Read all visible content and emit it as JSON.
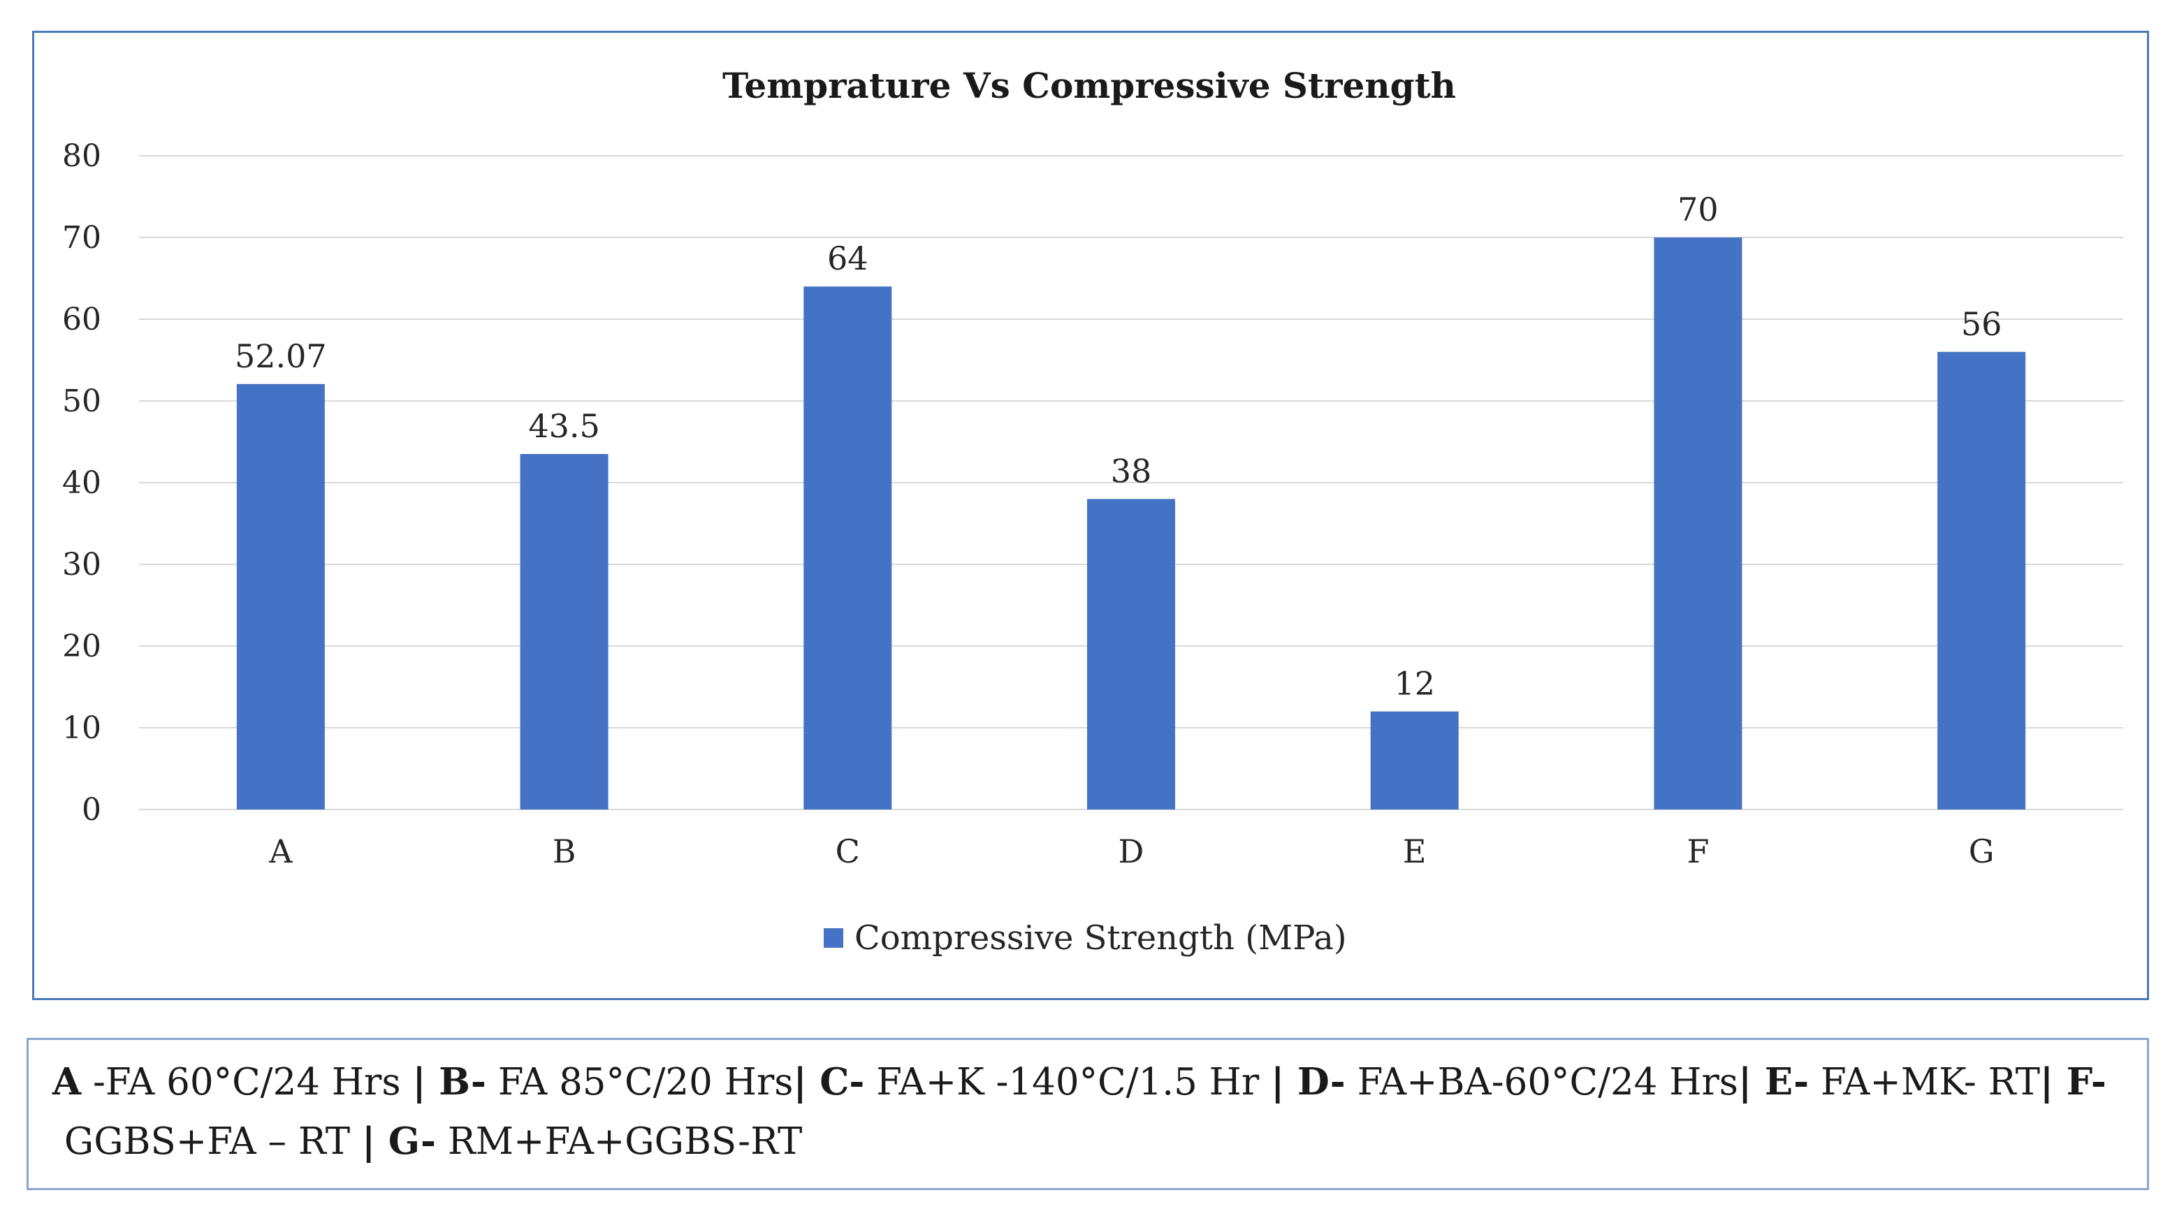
{
  "chart_data": {
    "type": "bar",
    "title": "Temprature Vs Compressive Strength",
    "categories": [
      "A",
      "B",
      "C",
      "D",
      "E",
      "F",
      "G"
    ],
    "series": [
      {
        "name": "Compressive Strength (MPa)",
        "values": [
          52.07,
          43.5,
          64,
          38,
          12,
          70,
          56
        ],
        "data_labels": [
          "52.07",
          "43.5",
          "64",
          "38",
          "12",
          "70",
          "56"
        ],
        "color": "#4472c4"
      }
    ],
    "y_ticks": [
      "0",
      "10",
      "20",
      "30",
      "40",
      "50",
      "60",
      "70",
      "80"
    ],
    "ylim": [
      0,
      80
    ],
    "xlabel": "",
    "ylabel": "",
    "grid": true,
    "legend_position": "bottom"
  },
  "caption": {
    "items": [
      {
        "key": "A",
        "sep": " -",
        "text": "FA 60°C/24 Hrs ",
        "bar": "| "
      },
      {
        "key": "B-",
        "sep": " ",
        "text": "FA 85°C/20 Hrs",
        "bar": "| "
      },
      {
        "key": "C-",
        "sep": " ",
        "text": "FA+K -140°C/1.5 Hr ",
        "bar": "| "
      },
      {
        "key": "D-",
        "sep": " ",
        "text": "FA+BA-60°C/24 Hrs",
        "bar": "| "
      },
      {
        "key": "E-",
        "sep": " ",
        "text": "FA+MK- RT",
        "bar": "| "
      },
      {
        "key": "F-",
        "sep": " ",
        "text": "GGBS+FA – RT ",
        "bar": "| "
      },
      {
        "key": "G-",
        "sep": " ",
        "text": "RM+FA+GGBS-RT",
        "bar": ""
      }
    ]
  },
  "colors": {
    "bar": "#4472c4",
    "grid": "#d9d9d9",
    "frame": "#4a7ab8",
    "caption_frame": "#8aa6cf"
  }
}
